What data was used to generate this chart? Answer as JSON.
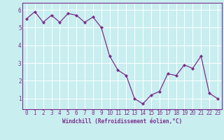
{
  "x": [
    0,
    1,
    2,
    3,
    4,
    5,
    6,
    7,
    8,
    9,
    10,
    11,
    12,
    13,
    14,
    15,
    16,
    17,
    18,
    19,
    20,
    21,
    22,
    23
  ],
  "y": [
    5.5,
    5.9,
    5.3,
    5.7,
    5.3,
    5.8,
    5.7,
    5.3,
    5.6,
    5.0,
    3.4,
    2.6,
    2.3,
    1.0,
    0.7,
    1.2,
    1.4,
    2.4,
    2.3,
    2.9,
    2.7,
    3.4,
    1.3,
    1.0
  ],
  "line_color": "#7B2D8B",
  "marker": "D",
  "marker_size": 2.0,
  "line_width": 0.9,
  "xlabel": "Windchill (Refroidissement éolien,°C)",
  "xlabel_color": "#7B2D8B",
  "xlabel_fontsize": 5.5,
  "bg_color": "#c8eef0",
  "grid_color": "#ffffff",
  "yticks": [
    1,
    2,
    3,
    4,
    5,
    6
  ],
  "ylim": [
    0.4,
    6.4
  ],
  "xlim": [
    -0.5,
    23.5
  ],
  "tick_fontsize": 5.5,
  "tick_color": "#7B2D8B",
  "border_color": "#7B2D8B"
}
